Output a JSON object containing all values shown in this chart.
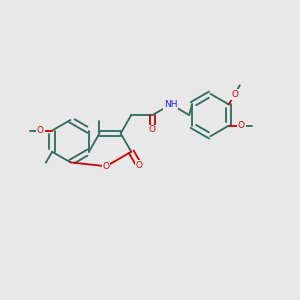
{
  "bg_color": "#e8e8e8",
  "bond_color": "#2d6b5a",
  "oxygen_color": "#cc0000",
  "nitrogen_color": "#1a1aff",
  "line_width": 1.3,
  "font_size": 6.5,
  "fig_width": 3.0,
  "fig_height": 3.0,
  "dpi": 100,
  "xlim": [
    0,
    10
  ],
  "ylim": [
    0,
    10
  ]
}
